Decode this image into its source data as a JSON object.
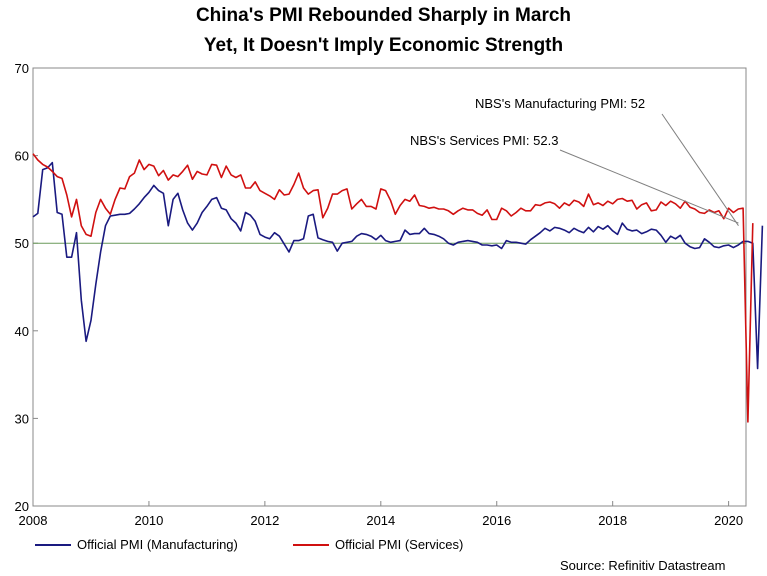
{
  "chart_data": {
    "type": "line",
    "title": "China's PMI Rebounded Sharply in March",
    "subtitle": "Yet, It Doesn't Imply Economic Strength",
    "xlabel": "",
    "ylabel": "",
    "xlim": [
      2008.0,
      2020.3
    ],
    "ylim": [
      20,
      70
    ],
    "x_ticks": [
      2008,
      2010,
      2012,
      2014,
      2016,
      2018,
      2020
    ],
    "x_tick_labels": [
      "2008",
      "2010",
      "2012",
      "2014",
      "2016",
      "2018",
      "2020"
    ],
    "y_ticks": [
      20,
      30,
      40,
      50,
      60,
      70
    ],
    "y_tick_labels": [
      "20",
      "30",
      "40",
      "50",
      "60",
      "70"
    ],
    "reference_line": 50,
    "reference_color": "#6a9a5a",
    "x_start": 2008.0,
    "x_step": 0.0833333,
    "series": [
      {
        "name": "Official PMI (Manufacturing)",
        "color": "#1a1a80",
        "values": [
          53.0,
          53.4,
          58.4,
          58.6,
          59.2,
          53.5,
          53.3,
          48.4,
          48.4,
          51.2,
          43.5,
          38.8,
          41.2,
          45.3,
          49.0,
          52.0,
          53.1,
          53.2,
          53.3,
          53.3,
          53.4,
          53.9,
          54.5,
          55.2,
          55.8,
          56.6,
          56.0,
          55.7,
          52.0,
          55.0,
          55.7,
          53.8,
          52.3,
          51.5,
          52.3,
          53.5,
          54.2,
          55.0,
          55.2,
          54.0,
          53.8,
          52.8,
          52.3,
          51.4,
          53.5,
          53.2,
          52.5,
          51.0,
          50.7,
          50.5,
          51.2,
          50.8,
          49.9,
          49.0,
          50.3,
          50.3,
          50.5,
          53.1,
          53.3,
          50.6,
          50.4,
          50.2,
          50.1,
          49.1,
          50.0,
          50.1,
          50.2,
          50.8,
          51.1,
          51.0,
          50.8,
          50.4,
          50.9,
          50.3,
          50.1,
          50.2,
          50.3,
          51.5,
          51.0,
          51.1,
          51.1,
          51.7,
          51.1,
          51.0,
          50.8,
          50.5,
          50.0,
          49.8,
          50.1,
          50.2,
          50.3,
          50.2,
          50.1,
          49.8,
          49.8,
          49.7,
          49.8,
          49.4,
          50.3,
          50.1,
          50.1,
          50.0,
          49.9,
          50.4,
          50.8,
          51.2,
          51.7,
          51.4,
          51.8,
          51.7,
          51.5,
          51.2,
          51.7,
          51.4,
          51.2,
          51.8,
          51.3,
          51.9,
          51.6,
          52.0,
          51.4,
          51.0,
          52.3,
          51.6,
          51.4,
          51.5,
          51.1,
          51.3,
          51.6,
          51.5,
          50.9,
          50.1,
          50.8,
          50.5,
          50.9,
          50.0,
          49.6,
          49.4,
          49.5,
          50.5,
          50.1,
          49.6,
          49.5,
          49.7,
          49.8,
          49.5,
          49.8,
          50.2,
          50.2,
          50.0,
          35.7,
          52.0
        ]
      },
      {
        "name": "Official PMI (Services)",
        "color": "#d01010",
        "values": [
          60.2,
          59.5,
          59.0,
          58.7,
          58.2,
          57.6,
          57.4,
          55.5,
          53.0,
          55.0,
          52.0,
          51.0,
          50.8,
          53.5,
          55.0,
          54.0,
          53.3,
          55.0,
          56.3,
          56.2,
          57.6,
          58.0,
          59.5,
          58.4,
          59.0,
          58.8,
          57.7,
          58.3,
          57.2,
          57.8,
          57.6,
          58.2,
          58.9,
          57.3,
          58.2,
          57.9,
          57.8,
          59.0,
          58.9,
          57.5,
          58.8,
          57.8,
          57.5,
          57.8,
          56.3,
          56.3,
          57.0,
          56.0,
          55.7,
          55.4,
          55.0,
          56.1,
          55.5,
          55.6,
          56.7,
          58.0,
          56.3,
          55.6,
          56.0,
          56.1,
          52.9,
          54.0,
          55.6,
          55.6,
          56.0,
          56.2,
          53.9,
          54.5,
          55.0,
          54.2,
          54.2,
          53.9,
          56.2,
          56.0,
          54.9,
          53.3,
          54.3,
          55.0,
          54.8,
          55.5,
          54.3,
          54.2,
          54.0,
          54.1,
          53.9,
          53.9,
          53.7,
          53.3,
          53.7,
          54.0,
          53.8,
          53.8,
          53.4,
          53.2,
          53.8,
          52.7,
          52.7,
          54.0,
          53.7,
          53.1,
          53.5,
          54.0,
          53.7,
          53.7,
          54.4,
          54.3,
          54.6,
          54.7,
          54.5,
          54.0,
          54.6,
          54.3,
          54.9,
          54.7,
          54.2,
          55.6,
          54.4,
          54.6,
          54.3,
          54.8,
          54.5,
          55.0,
          55.1,
          54.8,
          54.9,
          53.9,
          54.4,
          54.6,
          53.7,
          53.8,
          54.7,
          54.3,
          54.8,
          54.5,
          54.0,
          54.8,
          54.1,
          53.9,
          53.5,
          53.4,
          53.8,
          53.5,
          53.7,
          52.8,
          54.0,
          53.5,
          53.9,
          54.0,
          29.6,
          52.3
        ]
      }
    ],
    "annotations": [
      {
        "text": "NBS's Manufacturing PMI: 52",
        "target_x": 2020.17,
        "target_y": 52.0
      },
      {
        "text": "NBS's Services PMI: 52.3",
        "target_x": 2020.17,
        "target_y": 52.3
      }
    ],
    "legend": {
      "placement": "bottom-left",
      "entries": [
        "Official PMI (Manufacturing)",
        "Official PMI (Services)"
      ]
    },
    "source": "Source: Refinitiv Datastream"
  }
}
